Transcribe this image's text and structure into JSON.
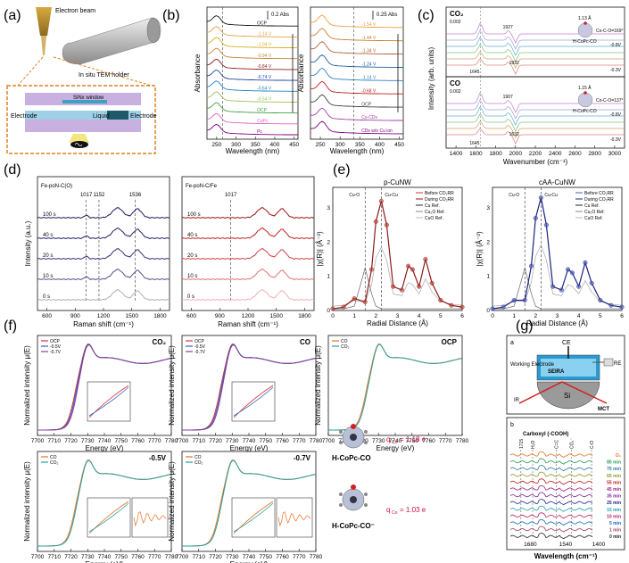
{
  "chart_data": [
    {
      "panel": "a",
      "type": "diagram",
      "labels": [
        "Electron beam",
        "In situ TEM holder",
        "SiNx window",
        "Electrode",
        "Liquid",
        "Electrode"
      ]
    },
    {
      "panel": "b",
      "type": "line",
      "plots": [
        {
          "xlabel": "Wavelength (nm)",
          "ylabel": "Absorbance",
          "xlim": [
            225,
            460
          ],
          "xticks": [
            250,
            300,
            350,
            400,
            450
          ],
          "scale_label": "0.2 Abs",
          "series": [
            "OCP",
            "-1.14 V",
            "-1.04 V",
            "-0.94 V",
            "-0.84 V",
            "-0.74 V",
            "-0.64 V",
            "-0.54 V",
            "OCP",
            "CuPc",
            "Pc"
          ],
          "colors": [
            "#111111",
            "#e8a040",
            "#d8b020",
            "#c88030",
            "#8a2020",
            "#2040a0",
            "#2080c0",
            "#a0c060",
            "#40a040",
            "#e060c0",
            "#800080"
          ]
        },
        {
          "xlabel": "Wavelength (nm)",
          "ylabel": "Absorbance",
          "xlim": [
            225,
            460
          ],
          "xticks": [
            250,
            300,
            350,
            400,
            450
          ],
          "scale_label": "0.25 Abs",
          "series": [
            "-1.54 V",
            "-1.44 V",
            "-1.34 V",
            "-1.24 V",
            "-1.14 V",
            "-0.68 V",
            "OCP",
            "Cu-CDs",
            "CDs w/o Cu ion"
          ],
          "colors": [
            "#e8a040",
            "#c88030",
            "#b06030",
            "#2060a0",
            "#3080c0",
            "#c02020",
            "#404040",
            "#a040a0",
            "#800080"
          ]
        }
      ]
    },
    {
      "panel": "c",
      "type": "line",
      "xlabel": "Wavenumber (cm⁻¹)",
      "ylabel": "Intensity (arb. units)",
      "xlim": [
        1300,
        3100
      ],
      "xticks": [
        1400,
        1600,
        1800,
        2000,
        2200,
        2400,
        2600,
        2800,
        3000
      ],
      "plots": [
        {
          "gas": "CO₂",
          "scale": "0.002",
          "peaks": [
            1645,
            1927,
            1932
          ],
          "angle": "1.13 Å",
          "molecule": "H-CoPc-CO",
          "note": "Co-C-O=169°",
          "potentials": [
            "-0.8V",
            "-0.3V"
          ]
        },
        {
          "gas": "CO",
          "scale": "0.002",
          "peaks": [
            1645,
            1907,
            1632
          ],
          "angle": "1.15 Å",
          "molecule": "H-CoPc-CO",
          "note": "Co-C-O=137°",
          "potentials": [
            "-0.8V",
            "-0.3V"
          ]
        }
      ]
    },
    {
      "panel": "d",
      "type": "line",
      "xlabel": "Raman shift (cm⁻¹)",
      "ylabel": "Intensity (a.u.)",
      "xlim": [
        500,
        1900
      ],
      "xticks": [
        600,
        900,
        1200,
        1500,
        1800
      ],
      "plots": [
        {
          "title": "Fe-poN-C(O)",
          "peaks": [
            1017,
            1152,
            1536
          ],
          "times": [
            "100 s",
            "40 s",
            "20 s",
            "10 s",
            "0 s"
          ],
          "colors": [
            "#1a1a5a",
            "#20206a",
            "#30307a",
            "#50508a",
            "#b0b0b0"
          ]
        },
        {
          "title": "Fe-poN-C/Fe",
          "peaks": [
            1017
          ],
          "times": [
            "100 s",
            "40 s",
            "20 s",
            "10 s",
            "0 s"
          ],
          "colors": [
            "#a01010",
            "#c02020",
            "#d04040",
            "#e07070",
            "#f0b0b0"
          ]
        }
      ]
    },
    {
      "panel": "e",
      "type": "line",
      "xlabel": "Radial Distance (Å)",
      "ylabel": "|χ(R)| (Å⁻³)",
      "xlim": [
        0,
        6
      ],
      "ylim": [
        0,
        3.6
      ],
      "xticks": [
        0,
        1,
        2,
        3,
        4,
        5,
        6
      ],
      "yticks": [
        0,
        1,
        2,
        3
      ],
      "annotations": [
        "Cu-O",
        "Cu-Cu"
      ],
      "plots": [
        {
          "title": "p-CuNW",
          "legend": [
            "Before CO₂RR",
            "During CO₂RR",
            "Cu Ref.",
            "Cu₂O Ref.",
            "CuO Ref."
          ],
          "colors": [
            "#c0392b",
            "#8b1a1a",
            "#222222",
            "#888888",
            "#bbbbbb"
          ],
          "x": [
            0,
            0.5,
            1.0,
            1.5,
            1.8,
            2.0,
            2.25,
            2.5,
            2.8,
            3.2,
            3.5,
            3.7,
            4.0,
            4.3,
            4.6,
            5.0,
            5.5,
            6.0
          ],
          "y": [
            0.05,
            0.1,
            0.35,
            0.25,
            1.2,
            2.6,
            3.2,
            2.5,
            0.7,
            0.6,
            1.3,
            1.2,
            0.7,
            1.5,
            0.8,
            0.3,
            0.15,
            0.1
          ]
        },
        {
          "title": "cAA-CuNW",
          "legend": [
            "Before CO₂RR",
            "During CO₂RR",
            "Cu Ref.",
            "Cu₂O Ref.",
            "CuO Ref."
          ],
          "colors": [
            "#4a5ab8",
            "#1a237e",
            "#222222",
            "#888888",
            "#bbbbbb"
          ],
          "x": [
            0,
            0.5,
            1.0,
            1.5,
            1.8,
            2.0,
            2.25,
            2.5,
            2.8,
            3.2,
            3.5,
            3.7,
            4.0,
            4.3,
            4.6,
            5.0,
            5.5,
            6.0
          ],
          "y": [
            0.05,
            0.1,
            0.3,
            0.3,
            1.3,
            2.7,
            3.3,
            2.5,
            0.7,
            0.6,
            1.2,
            1.1,
            0.7,
            1.4,
            0.8,
            0.3,
            0.15,
            0.1
          ]
        }
      ]
    },
    {
      "panel": "f",
      "type": "line",
      "xlabel": "Energy (eV)",
      "ylabel": "Normalized intensity μ(E)",
      "xlim": [
        7700,
        7780
      ],
      "xticks": [
        7700,
        7710,
        7720,
        7730,
        7740,
        7750,
        7760,
        7770,
        7780
      ],
      "plots": [
        {
          "title": "CO₂",
          "legend": [
            "OCP",
            "-0.5V",
            "-0.7V"
          ],
          "colors": [
            "#e03030",
            "#3060c0",
            "#8040a0"
          ]
        },
        {
          "title": "CO",
          "legend": [
            "OCP",
            "-0.5V",
            "-0.7V"
          ],
          "colors": [
            "#e03030",
            "#3060c0",
            "#8040a0"
          ]
        },
        {
          "title": "OCP",
          "legend": [
            "CO",
            "CO₂"
          ],
          "colors": [
            "#e87020",
            "#20a0a0"
          ]
        },
        {
          "title": "-0.5V",
          "legend": [
            "CO",
            "CO₂"
          ],
          "colors": [
            "#e87020",
            "#20a0a0"
          ]
        },
        {
          "title": "-0.7V",
          "legend": [
            "CO",
            "CO₂"
          ],
          "colors": [
            "#e87020",
            "#20a0a0"
          ]
        }
      ],
      "structures": [
        {
          "name": "H-CoPc-CO",
          "charge_label": "q",
          "charge_sub": "Co",
          "charge": "= 1.18 e"
        },
        {
          "name": "H-CoPc-CO⁻",
          "charge_label": "q",
          "charge_sub": "Co",
          "charge": "= 1.03 e"
        }
      ]
    },
    {
      "panel": "g",
      "type": "line",
      "subpanels": [
        "a",
        "b"
      ],
      "diagram_labels": [
        "CE",
        "RE",
        "Working Electrode",
        "SEIRA",
        "Si",
        "IR",
        "MCT"
      ],
      "xlabel": "Wavelength (cm⁻¹)",
      "xticks": [
        1680,
        1540,
        1400
      ],
      "band_labels": [
        "Carboxyl (-COOH)",
        "1715",
        "H₂O",
        "C=C",
        "CO₂⁻",
        "C-O"
      ],
      "times": [
        "O₂",
        "85 min",
        "75 min",
        "65 min",
        "55 min",
        "45 min",
        "35 min",
        "25 min",
        "15 min",
        "10 min",
        "5 min",
        "1 min",
        "0 min"
      ],
      "colors": [
        "#e87020",
        "#2a9a5a",
        "#2a7a9a",
        "#8a9a2a",
        "#c02020",
        "#a02080",
        "#8020a0",
        "#20208a",
        "#20a0a0",
        "#c02060",
        "#2060c0",
        "#a04060",
        "#222222"
      ]
    }
  ]
}
